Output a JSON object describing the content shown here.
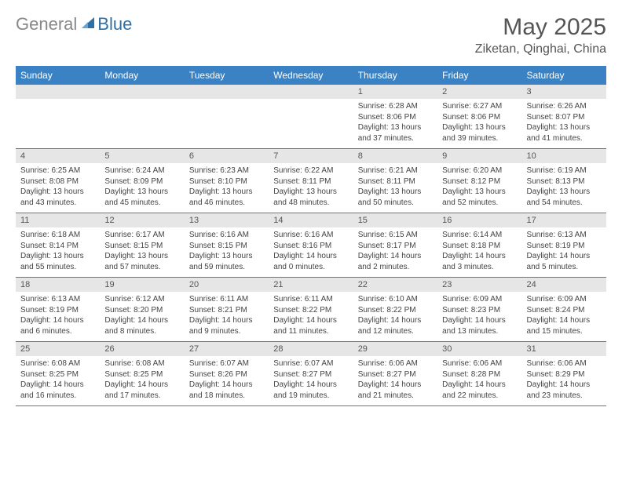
{
  "logo": {
    "text_general": "General",
    "text_blue": "Blue"
  },
  "title": {
    "month": "May 2025",
    "location": "Ziketan, Qinghai, China"
  },
  "colors": {
    "header_bg": "#3a82c4",
    "header_text": "#ffffff",
    "strip_bg": "#e6e6e6",
    "row_border": "#5a7a9a",
    "body_text": "#444444"
  },
  "day_names": [
    "Sunday",
    "Monday",
    "Tuesday",
    "Wednesday",
    "Thursday",
    "Friday",
    "Saturday"
  ],
  "weeks": [
    [
      {
        "date": "",
        "sunrise": "",
        "sunset": "",
        "daylight1": "",
        "daylight2": ""
      },
      {
        "date": "",
        "sunrise": "",
        "sunset": "",
        "daylight1": "",
        "daylight2": ""
      },
      {
        "date": "",
        "sunrise": "",
        "sunset": "",
        "daylight1": "",
        "daylight2": ""
      },
      {
        "date": "",
        "sunrise": "",
        "sunset": "",
        "daylight1": "",
        "daylight2": ""
      },
      {
        "date": "1",
        "sunrise": "Sunrise: 6:28 AM",
        "sunset": "Sunset: 8:06 PM",
        "daylight1": "Daylight: 13 hours",
        "daylight2": "and 37 minutes."
      },
      {
        "date": "2",
        "sunrise": "Sunrise: 6:27 AM",
        "sunset": "Sunset: 8:06 PM",
        "daylight1": "Daylight: 13 hours",
        "daylight2": "and 39 minutes."
      },
      {
        "date": "3",
        "sunrise": "Sunrise: 6:26 AM",
        "sunset": "Sunset: 8:07 PM",
        "daylight1": "Daylight: 13 hours",
        "daylight2": "and 41 minutes."
      }
    ],
    [
      {
        "date": "4",
        "sunrise": "Sunrise: 6:25 AM",
        "sunset": "Sunset: 8:08 PM",
        "daylight1": "Daylight: 13 hours",
        "daylight2": "and 43 minutes."
      },
      {
        "date": "5",
        "sunrise": "Sunrise: 6:24 AM",
        "sunset": "Sunset: 8:09 PM",
        "daylight1": "Daylight: 13 hours",
        "daylight2": "and 45 minutes."
      },
      {
        "date": "6",
        "sunrise": "Sunrise: 6:23 AM",
        "sunset": "Sunset: 8:10 PM",
        "daylight1": "Daylight: 13 hours",
        "daylight2": "and 46 minutes."
      },
      {
        "date": "7",
        "sunrise": "Sunrise: 6:22 AM",
        "sunset": "Sunset: 8:11 PM",
        "daylight1": "Daylight: 13 hours",
        "daylight2": "and 48 minutes."
      },
      {
        "date": "8",
        "sunrise": "Sunrise: 6:21 AM",
        "sunset": "Sunset: 8:11 PM",
        "daylight1": "Daylight: 13 hours",
        "daylight2": "and 50 minutes."
      },
      {
        "date": "9",
        "sunrise": "Sunrise: 6:20 AM",
        "sunset": "Sunset: 8:12 PM",
        "daylight1": "Daylight: 13 hours",
        "daylight2": "and 52 minutes."
      },
      {
        "date": "10",
        "sunrise": "Sunrise: 6:19 AM",
        "sunset": "Sunset: 8:13 PM",
        "daylight1": "Daylight: 13 hours",
        "daylight2": "and 54 minutes."
      }
    ],
    [
      {
        "date": "11",
        "sunrise": "Sunrise: 6:18 AM",
        "sunset": "Sunset: 8:14 PM",
        "daylight1": "Daylight: 13 hours",
        "daylight2": "and 55 minutes."
      },
      {
        "date": "12",
        "sunrise": "Sunrise: 6:17 AM",
        "sunset": "Sunset: 8:15 PM",
        "daylight1": "Daylight: 13 hours",
        "daylight2": "and 57 minutes."
      },
      {
        "date": "13",
        "sunrise": "Sunrise: 6:16 AM",
        "sunset": "Sunset: 8:15 PM",
        "daylight1": "Daylight: 13 hours",
        "daylight2": "and 59 minutes."
      },
      {
        "date": "14",
        "sunrise": "Sunrise: 6:16 AM",
        "sunset": "Sunset: 8:16 PM",
        "daylight1": "Daylight: 14 hours",
        "daylight2": "and 0 minutes."
      },
      {
        "date": "15",
        "sunrise": "Sunrise: 6:15 AM",
        "sunset": "Sunset: 8:17 PM",
        "daylight1": "Daylight: 14 hours",
        "daylight2": "and 2 minutes."
      },
      {
        "date": "16",
        "sunrise": "Sunrise: 6:14 AM",
        "sunset": "Sunset: 8:18 PM",
        "daylight1": "Daylight: 14 hours",
        "daylight2": "and 3 minutes."
      },
      {
        "date": "17",
        "sunrise": "Sunrise: 6:13 AM",
        "sunset": "Sunset: 8:19 PM",
        "daylight1": "Daylight: 14 hours",
        "daylight2": "and 5 minutes."
      }
    ],
    [
      {
        "date": "18",
        "sunrise": "Sunrise: 6:13 AM",
        "sunset": "Sunset: 8:19 PM",
        "daylight1": "Daylight: 14 hours",
        "daylight2": "and 6 minutes."
      },
      {
        "date": "19",
        "sunrise": "Sunrise: 6:12 AM",
        "sunset": "Sunset: 8:20 PM",
        "daylight1": "Daylight: 14 hours",
        "daylight2": "and 8 minutes."
      },
      {
        "date": "20",
        "sunrise": "Sunrise: 6:11 AM",
        "sunset": "Sunset: 8:21 PM",
        "daylight1": "Daylight: 14 hours",
        "daylight2": "and 9 minutes."
      },
      {
        "date": "21",
        "sunrise": "Sunrise: 6:11 AM",
        "sunset": "Sunset: 8:22 PM",
        "daylight1": "Daylight: 14 hours",
        "daylight2": "and 11 minutes."
      },
      {
        "date": "22",
        "sunrise": "Sunrise: 6:10 AM",
        "sunset": "Sunset: 8:22 PM",
        "daylight1": "Daylight: 14 hours",
        "daylight2": "and 12 minutes."
      },
      {
        "date": "23",
        "sunrise": "Sunrise: 6:09 AM",
        "sunset": "Sunset: 8:23 PM",
        "daylight1": "Daylight: 14 hours",
        "daylight2": "and 13 minutes."
      },
      {
        "date": "24",
        "sunrise": "Sunrise: 6:09 AM",
        "sunset": "Sunset: 8:24 PM",
        "daylight1": "Daylight: 14 hours",
        "daylight2": "and 15 minutes."
      }
    ],
    [
      {
        "date": "25",
        "sunrise": "Sunrise: 6:08 AM",
        "sunset": "Sunset: 8:25 PM",
        "daylight1": "Daylight: 14 hours",
        "daylight2": "and 16 minutes."
      },
      {
        "date": "26",
        "sunrise": "Sunrise: 6:08 AM",
        "sunset": "Sunset: 8:25 PM",
        "daylight1": "Daylight: 14 hours",
        "daylight2": "and 17 minutes."
      },
      {
        "date": "27",
        "sunrise": "Sunrise: 6:07 AM",
        "sunset": "Sunset: 8:26 PM",
        "daylight1": "Daylight: 14 hours",
        "daylight2": "and 18 minutes."
      },
      {
        "date": "28",
        "sunrise": "Sunrise: 6:07 AM",
        "sunset": "Sunset: 8:27 PM",
        "daylight1": "Daylight: 14 hours",
        "daylight2": "and 19 minutes."
      },
      {
        "date": "29",
        "sunrise": "Sunrise: 6:06 AM",
        "sunset": "Sunset: 8:27 PM",
        "daylight1": "Daylight: 14 hours",
        "daylight2": "and 21 minutes."
      },
      {
        "date": "30",
        "sunrise": "Sunrise: 6:06 AM",
        "sunset": "Sunset: 8:28 PM",
        "daylight1": "Daylight: 14 hours",
        "daylight2": "and 22 minutes."
      },
      {
        "date": "31",
        "sunrise": "Sunrise: 6:06 AM",
        "sunset": "Sunset: 8:29 PM",
        "daylight1": "Daylight: 14 hours",
        "daylight2": "and 23 minutes."
      }
    ]
  ]
}
